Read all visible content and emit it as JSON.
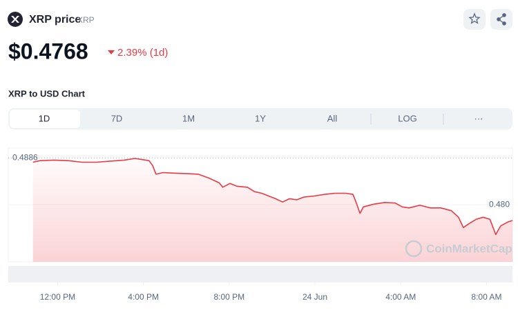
{
  "header": {
    "name": "XRP price",
    "symbol": "XRP",
    "price": "$0.4768",
    "change": "2.39% (1d)"
  },
  "chart_title": "XRP to USD Chart",
  "tabs": [
    "1D",
    "7D",
    "1M",
    "1Y",
    "All",
    "LOG",
    "···"
  ],
  "watermark": "CoinMarketCap",
  "chart_data": {
    "type": "line",
    "color": "#ea3943",
    "x": [
      10.85,
      11.18,
      11.84,
      12.49,
      13.15,
      13.8,
      14.46,
      15.11,
      15.61,
      15.93,
      16.26,
      16.43,
      16.59,
      16.92,
      17.41,
      18.07,
      18.56,
      19.05,
      19.54,
      19.7,
      20.03,
      20.36,
      20.85,
      21.18,
      21.51,
      21.84,
      22.16,
      22.49,
      22.82,
      23.15,
      23.48,
      23.97,
      24.46,
      24.95,
      25.44,
      25.77,
      25.93,
      26.1,
      26.26,
      26.75,
      27.25,
      27.74,
      28.07,
      28.39,
      28.89,
      29.38,
      29.87,
      30.36,
      30.69,
      30.92,
      31.18,
      31.51,
      31.84,
      32.16,
      32.43,
      32.66,
      32.98,
      33.21
    ],
    "values": [
      0.4878,
      0.4881,
      0.4882,
      0.4881,
      0.4878,
      0.4878,
      0.488,
      0.4882,
      0.4885,
      0.4883,
      0.4881,
      0.4872,
      0.4856,
      0.4859,
      0.4858,
      0.4857,
      0.4856,
      0.4849,
      0.484,
      0.4832,
      0.4839,
      0.4834,
      0.4832,
      0.4824,
      0.4821,
      0.4816,
      0.4811,
      0.4805,
      0.4811,
      0.4809,
      0.4814,
      0.4816,
      0.4819,
      0.4821,
      0.4821,
      0.4819,
      0.4803,
      0.4784,
      0.4796,
      0.4801,
      0.4804,
      0.4803,
      0.4796,
      0.4794,
      0.4799,
      0.4794,
      0.4794,
      0.4789,
      0.4777,
      0.4758,
      0.4765,
      0.4773,
      0.4777,
      0.4773,
      0.4745,
      0.4761,
      0.4768,
      0.4771
    ],
    "xlim": [
      9.7,
      33.21
    ],
    "xticks": [
      {
        "value": 12,
        "label": "12:00 PM"
      },
      {
        "value": 16,
        "label": "4:00 PM"
      },
      {
        "value": 20,
        "label": "8:00 PM"
      },
      {
        "value": 24,
        "label": "24 Jun"
      },
      {
        "value": 28,
        "label": "4:00 AM"
      },
      {
        "value": 32,
        "label": "8:00 AM"
      }
    ],
    "ylim": [
      0.4695,
      0.4904
    ],
    "yticks": [
      {
        "value": 0.48,
        "label": "0.480"
      }
    ],
    "reference": 0.4886
  }
}
